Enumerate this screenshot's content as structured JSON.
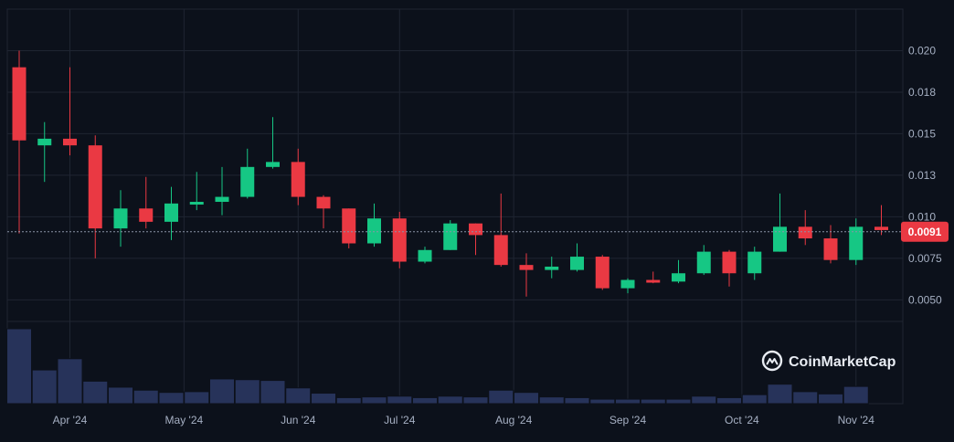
{
  "chart_data": {
    "type": "candlestick",
    "title": "",
    "xlabel": "",
    "ylabel": "",
    "ylim": [
      0.0037,
      0.0225
    ],
    "grid": true,
    "y_ticks": [
      {
        "value": 0.02,
        "label": "0.020"
      },
      {
        "value": 0.0175,
        "label": "0.018"
      },
      {
        "value": 0.015,
        "label": "0.015"
      },
      {
        "value": 0.0125,
        "label": "0.013"
      },
      {
        "value": 0.01,
        "label": "0.010"
      },
      {
        "value": 0.0075,
        "label": "0.0075"
      },
      {
        "value": 0.005,
        "label": "0.0050"
      }
    ],
    "x_ticks": [
      {
        "index": 2,
        "label": "Apr '24"
      },
      {
        "index": 6.5,
        "label": "May '24"
      },
      {
        "index": 11,
        "label": "Jun '24"
      },
      {
        "index": 15,
        "label": "Jul '24"
      },
      {
        "index": 19.5,
        "label": "Aug '24"
      },
      {
        "index": 24,
        "label": "Sep '24"
      },
      {
        "index": 28.5,
        "label": "Oct '24"
      },
      {
        "index": 33,
        "label": "Nov '24"
      }
    ],
    "current_price": {
      "value": 0.0091,
      "label": "0.0091"
    },
    "candles": [
      {
        "o": 0.019,
        "h": 0.02,
        "l": 0.009,
        "c": 0.0146
      },
      {
        "o": 0.0143,
        "h": 0.0157,
        "l": 0.0121,
        "c": 0.0147
      },
      {
        "o": 0.0147,
        "h": 0.019,
        "l": 0.0137,
        "c": 0.0143
      },
      {
        "o": 0.0143,
        "h": 0.0149,
        "l": 0.0075,
        "c": 0.0093
      },
      {
        "o": 0.0093,
        "h": 0.0116,
        "l": 0.0082,
        "c": 0.0105
      },
      {
        "o": 0.0105,
        "h": 0.0124,
        "l": 0.0093,
        "c": 0.0097
      },
      {
        "o": 0.0097,
        "h": 0.0118,
        "l": 0.0086,
        "c": 0.0108
      },
      {
        "o": 0.0108,
        "h": 0.0127,
        "l": 0.0104,
        "c": 0.0109
      },
      {
        "o": 0.0109,
        "h": 0.013,
        "l": 0.0101,
        "c": 0.0112
      },
      {
        "o": 0.0112,
        "h": 0.0141,
        "l": 0.0111,
        "c": 0.013
      },
      {
        "o": 0.013,
        "h": 0.016,
        "l": 0.0129,
        "c": 0.0133
      },
      {
        "o": 0.0133,
        "h": 0.0141,
        "l": 0.0107,
        "c": 0.0112
      },
      {
        "o": 0.0112,
        "h": 0.0113,
        "l": 0.0093,
        "c": 0.0105
      },
      {
        "o": 0.0105,
        "h": 0.0105,
        "l": 0.0081,
        "c": 0.0084
      },
      {
        "o": 0.0084,
        "h": 0.0108,
        "l": 0.0082,
        "c": 0.0099
      },
      {
        "o": 0.0099,
        "h": 0.0103,
        "l": 0.0069,
        "c": 0.0073
      },
      {
        "o": 0.0073,
        "h": 0.0082,
        "l": 0.0072,
        "c": 0.008
      },
      {
        "o": 0.008,
        "h": 0.0098,
        "l": 0.008,
        "c": 0.0096
      },
      {
        "o": 0.0096,
        "h": 0.0096,
        "l": 0.0077,
        "c": 0.0089
      },
      {
        "o": 0.0089,
        "h": 0.0114,
        "l": 0.007,
        "c": 0.0071
      },
      {
        "o": 0.0071,
        "h": 0.0078,
        "l": 0.0052,
        "c": 0.0068
      },
      {
        "o": 0.0068,
        "h": 0.0076,
        "l": 0.0063,
        "c": 0.007
      },
      {
        "o": 0.0068,
        "h": 0.0084,
        "l": 0.0067,
        "c": 0.0076
      },
      {
        "o": 0.0076,
        "h": 0.0077,
        "l": 0.0056,
        "c": 0.0057
      },
      {
        "o": 0.0057,
        "h": 0.0063,
        "l": 0.0054,
        "c": 0.0062
      },
      {
        "o": 0.0062,
        "h": 0.0067,
        "l": 0.006,
        "c": 0.0061
      },
      {
        "o": 0.0061,
        "h": 0.0074,
        "l": 0.006,
        "c": 0.0066
      },
      {
        "o": 0.0066,
        "h": 0.0083,
        "l": 0.0065,
        "c": 0.0079
      },
      {
        "o": 0.0079,
        "h": 0.008,
        "l": 0.0058,
        "c": 0.0066
      },
      {
        "o": 0.0066,
        "h": 0.0082,
        "l": 0.0062,
        "c": 0.0079
      },
      {
        "o": 0.0079,
        "h": 0.0114,
        "l": 0.0079,
        "c": 0.0094
      },
      {
        "o": 0.0094,
        "h": 0.0104,
        "l": 0.0083,
        "c": 0.0087
      },
      {
        "o": 0.0087,
        "h": 0.0095,
        "l": 0.0072,
        "c": 0.0074
      },
      {
        "o": 0.0074,
        "h": 0.0099,
        "l": 0.0071,
        "c": 0.0094
      },
      {
        "o": 0.0094,
        "h": 0.0107,
        "l": 0.0089,
        "c": 0.0092
      }
    ],
    "volumes": [
      1.0,
      0.45,
      0.6,
      0.3,
      0.22,
      0.18,
      0.15,
      0.16,
      0.33,
      0.32,
      0.31,
      0.21,
      0.14,
      0.08,
      0.09,
      0.1,
      0.08,
      0.1,
      0.09,
      0.18,
      0.15,
      0.09,
      0.08,
      0.06,
      0.06,
      0.06,
      0.06,
      0.1,
      0.08,
      0.12,
      0.26,
      0.16,
      0.13,
      0.23,
      0.0
    ]
  },
  "watermark": {
    "text": "CoinMarketCap"
  },
  "colors": {
    "background": "#0c111b",
    "grid": "#1f2532",
    "up": "#16c784",
    "down": "#ea3943",
    "volume": "#27335a",
    "axis_text": "#a6b0c3",
    "price_tag": "#ea3943"
  }
}
